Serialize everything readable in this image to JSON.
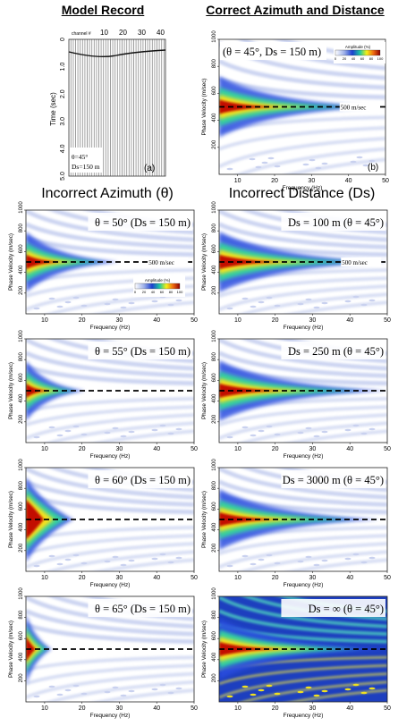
{
  "headers": {
    "model_record": "Model Record",
    "correct": "Correct Azimuth and Distance",
    "incorrect_azimuth": "Incorrect Azimuth (θ)",
    "incorrect_distance": "Incorrect Distance (Ds)"
  },
  "seismogram": {
    "channel_label": "channel #",
    "channel_ticks": [
      "10",
      "20",
      "30",
      "40"
    ],
    "y_label": "Time (sec)",
    "y_ticks": [
      "0",
      "1.0",
      "2.0",
      "3.0",
      "4.0",
      "5.0"
    ],
    "annotation_theta": "θ=45°",
    "annotation_ds": "Ds=150 m",
    "panel_letter": "(a)"
  },
  "axes": {
    "xlabel": "Frequency (Hz)",
    "ylabel": "Phase Velocity (m/sec)",
    "x_ticks": [
      "10",
      "20",
      "30",
      "40",
      "50"
    ],
    "y_ticks": [
      "200",
      "400",
      "600",
      "800",
      "1000"
    ]
  },
  "legend": {
    "title": "Amplitude (%)",
    "ticks": [
      "0",
      "20",
      "40",
      "60",
      "80",
      "100"
    ]
  },
  "panels": [
    {
      "id": "b",
      "label": "(θ = 45°, Ds = 150 m)",
      "letter": "(b)",
      "line_label": "500 m/sec",
      "has_legend": true
    },
    {
      "id": "az50",
      "label": "θ = 50° (Ds = 150 m)",
      "line_label": "500 m/sec",
      "has_legend": true
    },
    {
      "id": "ds100",
      "label": "Ds = 100 m (θ = 45°)",
      "line_label": "500 m/sec"
    },
    {
      "id": "az55",
      "label": "θ = 55° (Ds = 150 m)"
    },
    {
      "id": "ds250",
      "label": "Ds = 250 m (θ = 45°)"
    },
    {
      "id": "az60",
      "label": "θ = 60° (Ds = 150 m)"
    },
    {
      "id": "ds3000",
      "label": "Ds = 3000 m (θ = 45°)"
    },
    {
      "id": "az65",
      "label": "θ = 65° (Ds = 150 m)"
    },
    {
      "id": "dsinf",
      "label": "Ds = ∞ (θ = 45°)"
    }
  ],
  "chart_data": [
    {
      "type": "heatmap",
      "panel": "(b)",
      "xlabel": "Frequency (Hz)",
      "ylabel": "Phase Velocity (m/sec)",
      "xlim": [
        5,
        50
      ],
      "ylim": [
        0,
        1000
      ],
      "reference_line_velocity": 500,
      "energy": "concentrated along 500 m/sec"
    },
    {
      "type": "heatmap",
      "panel": "θ = 50° (Ds = 150 m)",
      "xlim": [
        5,
        50
      ],
      "ylim": [
        0,
        1000
      ],
      "reference_line_velocity": 500
    },
    {
      "type": "heatmap",
      "panel": "Ds = 100 m (θ = 45°)",
      "xlim": [
        5,
        50
      ],
      "ylim": [
        0,
        1000
      ],
      "reference_line_velocity": 500
    },
    {
      "type": "heatmap",
      "panel": "θ = 55° (Ds = 150 m)",
      "xlim": [
        5,
        50
      ],
      "ylim": [
        0,
        1000
      ],
      "reference_line_velocity": 500
    },
    {
      "type": "heatmap",
      "panel": "Ds = 250 m (θ = 45°)",
      "xlim": [
        5,
        50
      ],
      "ylim": [
        0,
        1000
      ],
      "reference_line_velocity": 500
    },
    {
      "type": "heatmap",
      "panel": "θ = 60° (Ds = 150 m)",
      "xlim": [
        5,
        50
      ],
      "ylim": [
        0,
        1000
      ],
      "reference_line_velocity": 500
    },
    {
      "type": "heatmap",
      "panel": "Ds = 3000 m (θ = 45°)",
      "xlim": [
        5,
        50
      ],
      "ylim": [
        0,
        1000
      ],
      "reference_line_velocity": 500
    },
    {
      "type": "heatmap",
      "panel": "θ = 65° (Ds = 150 m)",
      "xlim": [
        5,
        50
      ],
      "ylim": [
        0,
        1000
      ],
      "reference_line_velocity": 500
    },
    {
      "type": "heatmap",
      "panel": "Ds = ∞ (θ = 45°)",
      "xlim": [
        5,
        50
      ],
      "ylim": [
        0,
        1000
      ],
      "reference_line_velocity": 500
    }
  ]
}
